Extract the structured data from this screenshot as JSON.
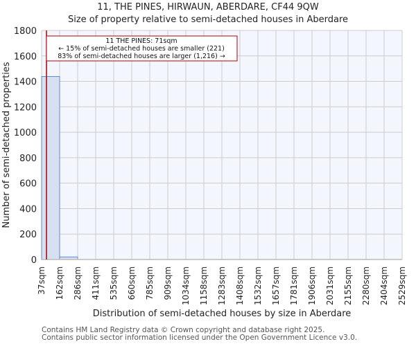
{
  "header": {
    "title": "11, THE PINES, HIRWAUN, ABERDARE, CF44 9QW",
    "subtitle": "Size of property relative to semi-detached houses in Aberdare"
  },
  "annotation": {
    "line1": "11 THE PINES: 71sqm",
    "line2": "← 15% of semi-detached houses are smaller (221)",
    "line3": "83% of semi-detached houses are larger (1,216) →",
    "marker_value": 71,
    "color": "#b00000"
  },
  "footer": {
    "line1": "Contains HM Land Registry data © Crown copyright and database right 2025.",
    "line2": "Contains public sector information licensed under the Open Government Licence v3.0."
  },
  "chart_data": {
    "type": "bar",
    "title": "11, THE PINES, HIRWAUN, ABERDARE, CF44 9QW",
    "subtitle": "Size of property relative to semi-detached houses in Aberdare",
    "xlabel": "Distribution of semi-detached houses by size in Aberdare",
    "ylabel": "Number of semi-detached properties",
    "categories": [
      "37sqm",
      "162sqm",
      "286sqm",
      "411sqm",
      "535sqm",
      "660sqm",
      "785sqm",
      "909sqm",
      "1034sqm",
      "1158sqm",
      "1283sqm",
      "1408sqm",
      "1532sqm",
      "1657sqm",
      "1781sqm",
      "1906sqm",
      "2031sqm",
      "2155sqm",
      "2280sqm",
      "2404sqm",
      "2529sqm"
    ],
    "bin_edges": [
      37,
      162,
      286,
      411,
      535,
      660,
      785,
      909,
      1034,
      1158,
      1283,
      1408,
      1532,
      1657,
      1781,
      1906,
      2031,
      2155,
      2280,
      2404,
      2529
    ],
    "values": [
      1438,
      20,
      0,
      0,
      0,
      0,
      0,
      0,
      0,
      0,
      0,
      0,
      0,
      0,
      0,
      0,
      0,
      0,
      0,
      0
    ],
    "ylim": [
      0,
      1800
    ],
    "yticks": [
      0,
      200,
      400,
      600,
      800,
      1000,
      1200,
      1400,
      1600,
      1800
    ],
    "grid": true,
    "bar_color": "#d6e0f1",
    "bar_edge_color": "#5b8ccc",
    "marker_line": 71
  }
}
